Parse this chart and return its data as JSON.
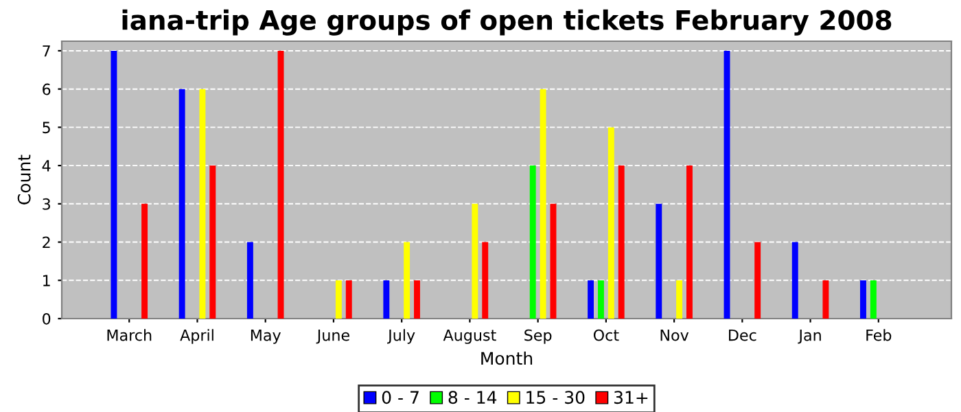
{
  "chart_data": {
    "type": "bar",
    "title": "iana-trip Age groups of open tickets February 2008",
    "xlabel": "Month",
    "ylabel": "Count",
    "categories": [
      "March",
      "April",
      "May",
      "June",
      "July",
      "August",
      "Sep",
      "Oct",
      "Nov",
      "Dec",
      "Jan",
      "Feb"
    ],
    "series": [
      {
        "name": "0 - 7",
        "color": "#0000ff",
        "values": [
          7,
          6,
          2,
          null,
          1,
          null,
          null,
          1,
          3,
          7,
          2,
          1
        ]
      },
      {
        "name": "8 - 14",
        "color": "#00ff00",
        "values": [
          null,
          null,
          null,
          null,
          null,
          null,
          4,
          1,
          null,
          null,
          null,
          1
        ]
      },
      {
        "name": "15 - 30",
        "color": "#ffff00",
        "values": [
          null,
          6,
          null,
          1,
          2,
          3,
          6,
          5,
          1,
          null,
          null,
          null
        ]
      },
      {
        "name": "31+",
        "color": "#ff0000",
        "values": [
          3,
          4,
          7,
          1,
          1,
          2,
          3,
          4,
          4,
          2,
          1,
          null
        ]
      }
    ],
    "ylim": [
      0,
      7.25
    ],
    "yticks": [
      0,
      1,
      2,
      3,
      4,
      5,
      6,
      7
    ],
    "grid": "y",
    "legend": "bottom"
  }
}
